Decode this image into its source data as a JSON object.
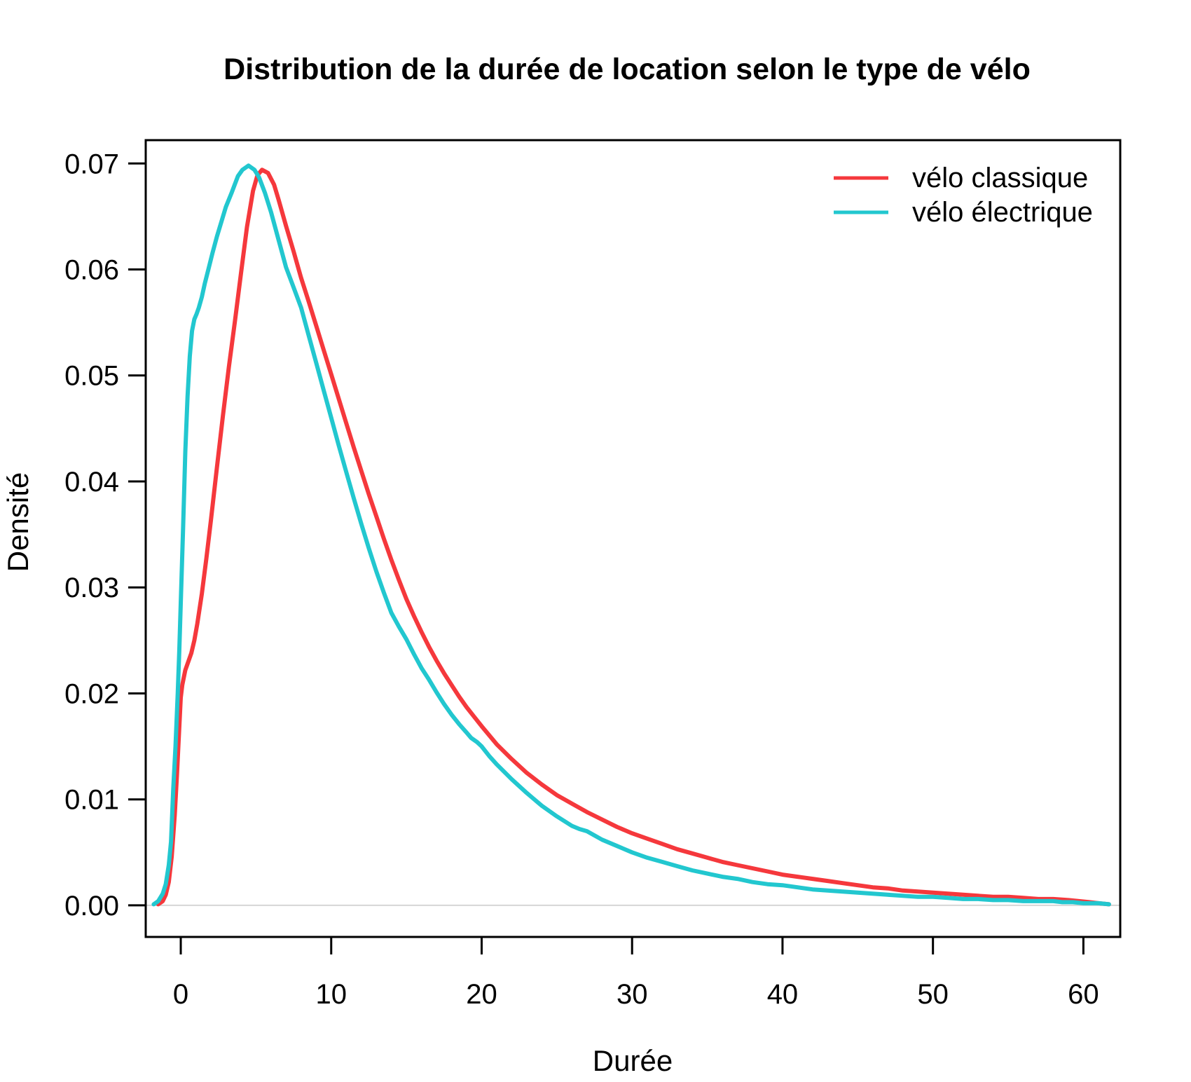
{
  "figure": {
    "background": "#FFFFFF"
  },
  "chart_data": {
    "type": "line",
    "subtype": "kernel-density",
    "title": "Distribution de la durée de location selon le type de vélo",
    "xlabel": "Durée",
    "ylabel": "Densité",
    "xlim": [
      -2.33,
      62.45
    ],
    "ylim": [
      -0.00298,
      0.0722
    ],
    "x_ticks": [
      0,
      10,
      20,
      30,
      40,
      50,
      60
    ],
    "x_tick_labels": [
      "0",
      "10",
      "20",
      "30",
      "40",
      "50",
      "60"
    ],
    "y_tick_values": [
      0.0,
      0.01,
      0.02,
      0.03,
      0.04,
      0.05,
      0.06,
      0.07
    ],
    "y_tick_labels": [
      "0.00",
      "0.01",
      "0.02",
      "0.03",
      "0.04",
      "0.05",
      "0.06",
      "0.07"
    ],
    "grid": "none",
    "legend_position": "top-right",
    "axis_color": "#000000",
    "zero_line": {
      "y": 0.0,
      "color": "#D6D6D6"
    },
    "series": [
      {
        "name": "vélo classique",
        "color": "#F5383C",
        "points": [
          [
            -1.5,
            0.0001
          ],
          [
            -1.2,
            0.0004
          ],
          [
            -1.0,
            0.001
          ],
          [
            -0.8,
            0.0022
          ],
          [
            -0.6,
            0.0046
          ],
          [
            -0.4,
            0.0085
          ],
          [
            -0.25,
            0.0125
          ],
          [
            -0.1,
            0.0168
          ],
          [
            0,
            0.0196
          ],
          [
            0.1,
            0.0208
          ],
          [
            0.3,
            0.0222
          ],
          [
            0.5,
            0.023
          ],
          [
            0.7,
            0.0238
          ],
          [
            0.9,
            0.025
          ],
          [
            1.1,
            0.0266
          ],
          [
            1.4,
            0.0294
          ],
          [
            1.7,
            0.0327
          ],
          [
            2,
            0.0363
          ],
          [
            2.4,
            0.0413
          ],
          [
            2.8,
            0.0462
          ],
          [
            3.2,
            0.0508
          ],
          [
            3.6,
            0.0551
          ],
          [
            4,
            0.0596
          ],
          [
            4.4,
            0.064
          ],
          [
            4.8,
            0.0674
          ],
          [
            5.1,
            0.0689
          ],
          [
            5.4,
            0.0694
          ],
          [
            5.8,
            0.0691
          ],
          [
            6.2,
            0.068
          ],
          [
            6.5,
            0.0666
          ],
          [
            7,
            0.0641
          ],
          [
            7.5,
            0.0617
          ],
          [
            8,
            0.0592
          ],
          [
            8.5,
            0.057
          ],
          [
            9,
            0.0547
          ],
          [
            9.5,
            0.0524
          ],
          [
            10,
            0.0501
          ],
          [
            10.5,
            0.0478
          ],
          [
            11,
            0.0455
          ],
          [
            11.5,
            0.0432
          ],
          [
            12,
            0.041
          ],
          [
            12.5,
            0.0388
          ],
          [
            13,
            0.0367
          ],
          [
            13.5,
            0.0346
          ],
          [
            14,
            0.0326
          ],
          [
            14.5,
            0.0307
          ],
          [
            15,
            0.0289
          ],
          [
            15.5,
            0.0273
          ],
          [
            16,
            0.0258
          ],
          [
            16.5,
            0.0244
          ],
          [
            17,
            0.0231
          ],
          [
            17.5,
            0.0219
          ],
          [
            18,
            0.0208
          ],
          [
            18.5,
            0.0197
          ],
          [
            19,
            0.0187
          ],
          [
            19.5,
            0.0178
          ],
          [
            20,
            0.0169
          ],
          [
            21,
            0.0152
          ],
          [
            22,
            0.0138
          ],
          [
            23,
            0.0125
          ],
          [
            24,
            0.0114
          ],
          [
            25,
            0.0104
          ],
          [
            26,
            0.0096
          ],
          [
            27,
            0.0088
          ],
          [
            28,
            0.0081
          ],
          [
            29,
            0.0074
          ],
          [
            30,
            0.0068
          ],
          [
            31,
            0.0063
          ],
          [
            32,
            0.0058
          ],
          [
            33,
            0.0053
          ],
          [
            34,
            0.0049
          ],
          [
            35,
            0.0045
          ],
          [
            36,
            0.0041
          ],
          [
            37,
            0.0038
          ],
          [
            38,
            0.0035
          ],
          [
            39,
            0.0032
          ],
          [
            40,
            0.0029
          ],
          [
            41,
            0.0027
          ],
          [
            42,
            0.0025
          ],
          [
            43,
            0.0023
          ],
          [
            44,
            0.0021
          ],
          [
            45,
            0.0019
          ],
          [
            46,
            0.0017
          ],
          [
            47,
            0.0016
          ],
          [
            48,
            0.0014
          ],
          [
            49,
            0.0013
          ],
          [
            50,
            0.0012
          ],
          [
            51,
            0.0011
          ],
          [
            52,
            0.001
          ],
          [
            53,
            0.0009
          ],
          [
            54,
            0.0008
          ],
          [
            55,
            0.0008
          ],
          [
            56,
            0.0007
          ],
          [
            57,
            0.0006
          ],
          [
            58,
            0.0006
          ],
          [
            59,
            0.0005
          ],
          [
            59.7,
            0.0004
          ],
          [
            60.4,
            0.0003
          ],
          [
            61,
            0.0002
          ],
          [
            61.7,
            0.0001
          ]
        ]
      },
      {
        "name": "vélo électrique",
        "color": "#22C7CF",
        "points": [
          [
            -1.8,
            0.0001
          ],
          [
            -1.5,
            0.0004
          ],
          [
            -1.2,
            0.0011
          ],
          [
            -1.0,
            0.002
          ],
          [
            -0.8,
            0.0038
          ],
          [
            -0.65,
            0.006
          ],
          [
            -0.5,
            0.011
          ],
          [
            -0.35,
            0.015
          ],
          [
            -0.2,
            0.02
          ],
          [
            -0.1,
            0.024
          ],
          [
            0,
            0.0285
          ],
          [
            0.15,
            0.0355
          ],
          [
            0.3,
            0.0428
          ],
          [
            0.45,
            0.048
          ],
          [
            0.6,
            0.0518
          ],
          [
            0.75,
            0.0542
          ],
          [
            0.9,
            0.0553
          ],
          [
            1.05,
            0.0558
          ],
          [
            1.2,
            0.0564
          ],
          [
            1.4,
            0.0574
          ],
          [
            1.6,
            0.0587
          ],
          [
            1.85,
            0.0601
          ],
          [
            2.1,
            0.0615
          ],
          [
            2.4,
            0.0631
          ],
          [
            2.7,
            0.0645
          ],
          [
            3,
            0.0659
          ],
          [
            3.4,
            0.0673
          ],
          [
            3.8,
            0.0688
          ],
          [
            4.1,
            0.0694
          ],
          [
            4.5,
            0.0698
          ],
          [
            4.9,
            0.0694
          ],
          [
            5.2,
            0.0687
          ],
          [
            5.6,
            0.0672
          ],
          [
            6,
            0.0654
          ],
          [
            6.5,
            0.0628
          ],
          [
            7,
            0.0602
          ],
          [
            7.5,
            0.0583
          ],
          [
            8,
            0.0564
          ],
          [
            8.5,
            0.0538
          ],
          [
            9,
            0.0512
          ],
          [
            9.5,
            0.0486
          ],
          [
            10,
            0.046
          ],
          [
            10.5,
            0.0434
          ],
          [
            11,
            0.0409
          ],
          [
            11.5,
            0.0384
          ],
          [
            12,
            0.036
          ],
          [
            12.5,
            0.0337
          ],
          [
            13,
            0.0315
          ],
          [
            13.5,
            0.0295
          ],
          [
            14,
            0.0276
          ],
          [
            14.5,
            0.0263
          ],
          [
            15,
            0.0251
          ],
          [
            15.5,
            0.0237
          ],
          [
            16,
            0.0224
          ],
          [
            16.5,
            0.0213
          ],
          [
            17,
            0.0201
          ],
          [
            17.5,
            0.019
          ],
          [
            18,
            0.018
          ],
          [
            18.5,
            0.0171
          ],
          [
            19,
            0.0163
          ],
          [
            19.3,
            0.0158
          ],
          [
            19.7,
            0.0154
          ],
          [
            20,
            0.015
          ],
          [
            20.5,
            0.0141
          ],
          [
            21,
            0.0133
          ],
          [
            21.5,
            0.0126
          ],
          [
            22,
            0.0119
          ],
          [
            23,
            0.0106
          ],
          [
            24,
            0.0094
          ],
          [
            25,
            0.0084
          ],
          [
            26,
            0.0075
          ],
          [
            26.5,
            0.0072
          ],
          [
            27,
            0.007
          ],
          [
            27.5,
            0.0066
          ],
          [
            28,
            0.0062
          ],
          [
            29,
            0.0056
          ],
          [
            30,
            0.005
          ],
          [
            31,
            0.0045
          ],
          [
            32,
            0.0041
          ],
          [
            33,
            0.0037
          ],
          [
            34,
            0.0033
          ],
          [
            35,
            0.003
          ],
          [
            36,
            0.0027
          ],
          [
            37,
            0.0025
          ],
          [
            38,
            0.0022
          ],
          [
            39,
            0.002
          ],
          [
            40,
            0.0019
          ],
          [
            41,
            0.0017
          ],
          [
            42,
            0.0015
          ],
          [
            43,
            0.0014
          ],
          [
            44,
            0.0013
          ],
          [
            45,
            0.0012
          ],
          [
            46,
            0.0011
          ],
          [
            47,
            0.001
          ],
          [
            48,
            0.0009
          ],
          [
            49,
            0.0008
          ],
          [
            50,
            0.0008
          ],
          [
            51,
            0.0007
          ],
          [
            52,
            0.0006
          ],
          [
            53,
            0.0006
          ],
          [
            54,
            0.0005
          ],
          [
            55,
            0.0005
          ],
          [
            56,
            0.0004
          ],
          [
            57,
            0.0004
          ],
          [
            58,
            0.0004
          ],
          [
            58.6,
            0.0003
          ],
          [
            59.3,
            0.0003
          ],
          [
            60,
            0.0002
          ],
          [
            61,
            0.0002
          ],
          [
            61.7,
            0.0001
          ]
        ]
      }
    ]
  }
}
